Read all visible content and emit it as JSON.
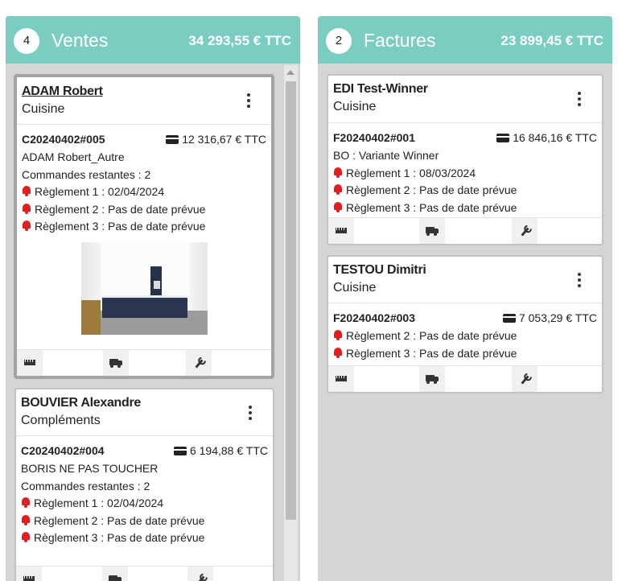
{
  "columns": {
    "ventes": {
      "count": "4",
      "title": "Ventes",
      "total": "34 293,55 € TTC"
    },
    "factures": {
      "count": "2",
      "title": "Factures",
      "total": "23 899,45 € TTC"
    }
  },
  "cards": [
    {
      "name": "ADAM Robert",
      "category": "Cuisine",
      "ref": "C20240402#005",
      "amount": "12 316,67 € TTC",
      "lines": [
        "ADAM Robert_Autre",
        "Commandes restantes : 2"
      ],
      "alerts": [
        "Règlement 1 : 02/04/2024",
        "Règlement 2 : Pas de date prévue",
        "Règlement 3 : Pas de date prévue"
      ]
    },
    {
      "name": "BOUVIER Alexandre",
      "category": "Compléments",
      "ref": "C20240402#004",
      "amount": "6 194,88 € TTC",
      "lines": [
        "BORIS NE PAS TOUCHER",
        "Commandes restantes : 2"
      ],
      "alerts": [
        "Règlement 1 : 02/04/2024",
        "Règlement 2 : Pas de date prévue",
        "Règlement 3 : Pas de date prévue"
      ]
    },
    {
      "name": "EDI Test-Winner",
      "category": "Cuisine",
      "ref": "F20240402#001",
      "amount": "16 846,16 € TTC",
      "lines": [
        "BO : Variante Winner"
      ],
      "alerts": [
        "Règlement 1 : 08/03/2024",
        "Règlement 2 : Pas de date prévue",
        "Règlement 3 : Pas de date prévue"
      ]
    },
    {
      "name": "TESTOU Dimitri",
      "category": "Cuisine",
      "ref": "F20240402#003",
      "amount": "7 053,29 € TTC",
      "lines": [],
      "alerts": [
        "Règlement 2 : Pas de date prévue",
        "Règlement 3 : Pas de date prévue"
      ]
    }
  ],
  "icons": {
    "menu": "kebab-menu-icon",
    "payment": "credit-card-icon",
    "alert": "bell-icon",
    "measure": "ruler-icon",
    "delivery": "truck-icon",
    "service": "wrench-icon"
  },
  "colors": {
    "header": "#7ccdc1",
    "alert": "#e02020",
    "column_bg": "#d5d5d5"
  }
}
